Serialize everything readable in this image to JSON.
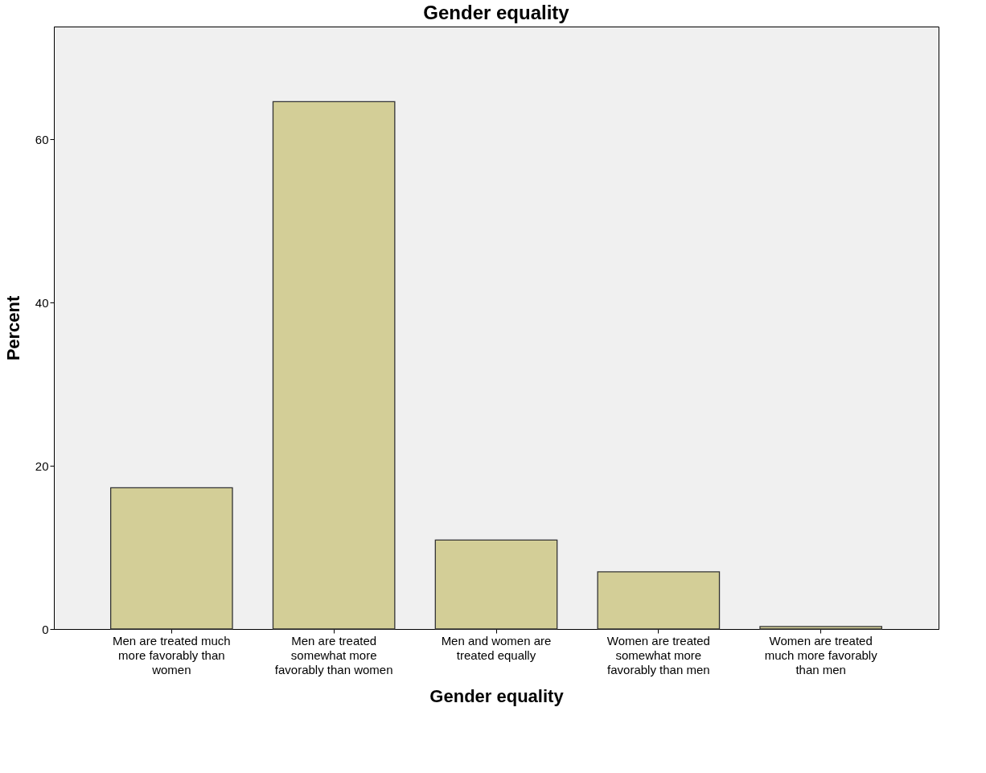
{
  "chart_data": {
    "type": "bar",
    "title": "Gender equality",
    "xlabel": "Gender equality",
    "ylabel": "Percent",
    "categories": [
      "Men are treated much more favorably than women",
      "Men are treated somewhat more favorably than women",
      "Men and women are treated equally",
      "Women are treated somewhat more favorably than men",
      "Women are treated much more favorably than men"
    ],
    "values": [
      17.3,
      64.6,
      10.9,
      7.0,
      0.3
    ],
    "color": "#d3ce97",
    "ylim": [
      0,
      73.8
    ],
    "yticks": [
      0,
      20,
      40,
      60
    ],
    "grid": false
  }
}
